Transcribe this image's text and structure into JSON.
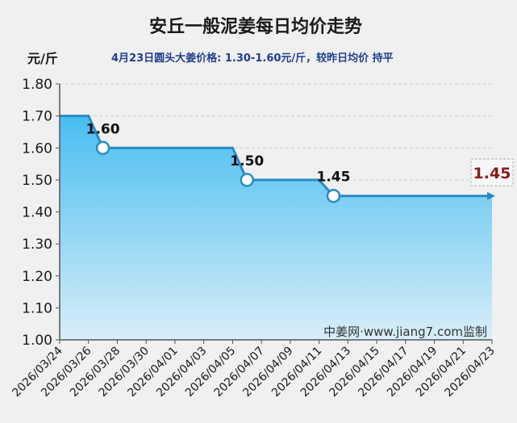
{
  "chart_data": {
    "type": "area",
    "title": "安丘一般泥姜每日均价走势",
    "unit_label": "元/斤",
    "subtitle": "4月23日圆头大姜价格: 1.30-1.60元/斤，较昨日均价 持平",
    "watermark": "中姜网·www.jiang7.com监制",
    "ylim": [
      1.0,
      1.8
    ],
    "yticks": [
      "1.00",
      "1.10",
      "1.20",
      "1.30",
      "1.40",
      "1.50",
      "1.60",
      "1.70",
      "1.80"
    ],
    "xticks": [
      "2026/03/24",
      "2026/03/26",
      "2026/03/28",
      "2026/03/30",
      "2026/04/01",
      "2026/04/03",
      "2026/04/05",
      "2026/04/07",
      "2026/04/09",
      "2026/04/11",
      "2026/04/13",
      "2026/04/15",
      "2026/04/17",
      "2026/04/19",
      "2026/04/21",
      "2026/04/23"
    ],
    "x_start": "2026/03/24",
    "x_end": "2026/04/23",
    "points": [
      {
        "date": "2026/03/24",
        "value": 1.7
      },
      {
        "date": "2026/03/26",
        "value": 1.7
      },
      {
        "date": "2026/03/27",
        "value": 1.6
      },
      {
        "date": "2026/04/05",
        "value": 1.6
      },
      {
        "date": "2026/04/06",
        "value": 1.5
      },
      {
        "date": "2026/04/11",
        "value": 1.5
      },
      {
        "date": "2026/04/12",
        "value": 1.45
      },
      {
        "date": "2026/04/23",
        "value": 1.45
      }
    ],
    "markers": [
      {
        "date": "2026/03/27",
        "value": 1.6,
        "label": "1.60"
      },
      {
        "date": "2026/04/06",
        "value": 1.5,
        "label": "1.50"
      },
      {
        "date": "2026/04/12",
        "value": 1.45,
        "label": "1.45"
      }
    ],
    "last_value_label": "1.45",
    "colors": {
      "line": "#2a8ac6",
      "fill_top": "#48bdf0",
      "fill_bottom": "#d8eef8",
      "title": "#1a1a1a",
      "subtitle": "#1f3f8f",
      "last_value": "#8b1a1a",
      "background": "#f0f0f0"
    },
    "grid": "horizontal-dashed"
  }
}
